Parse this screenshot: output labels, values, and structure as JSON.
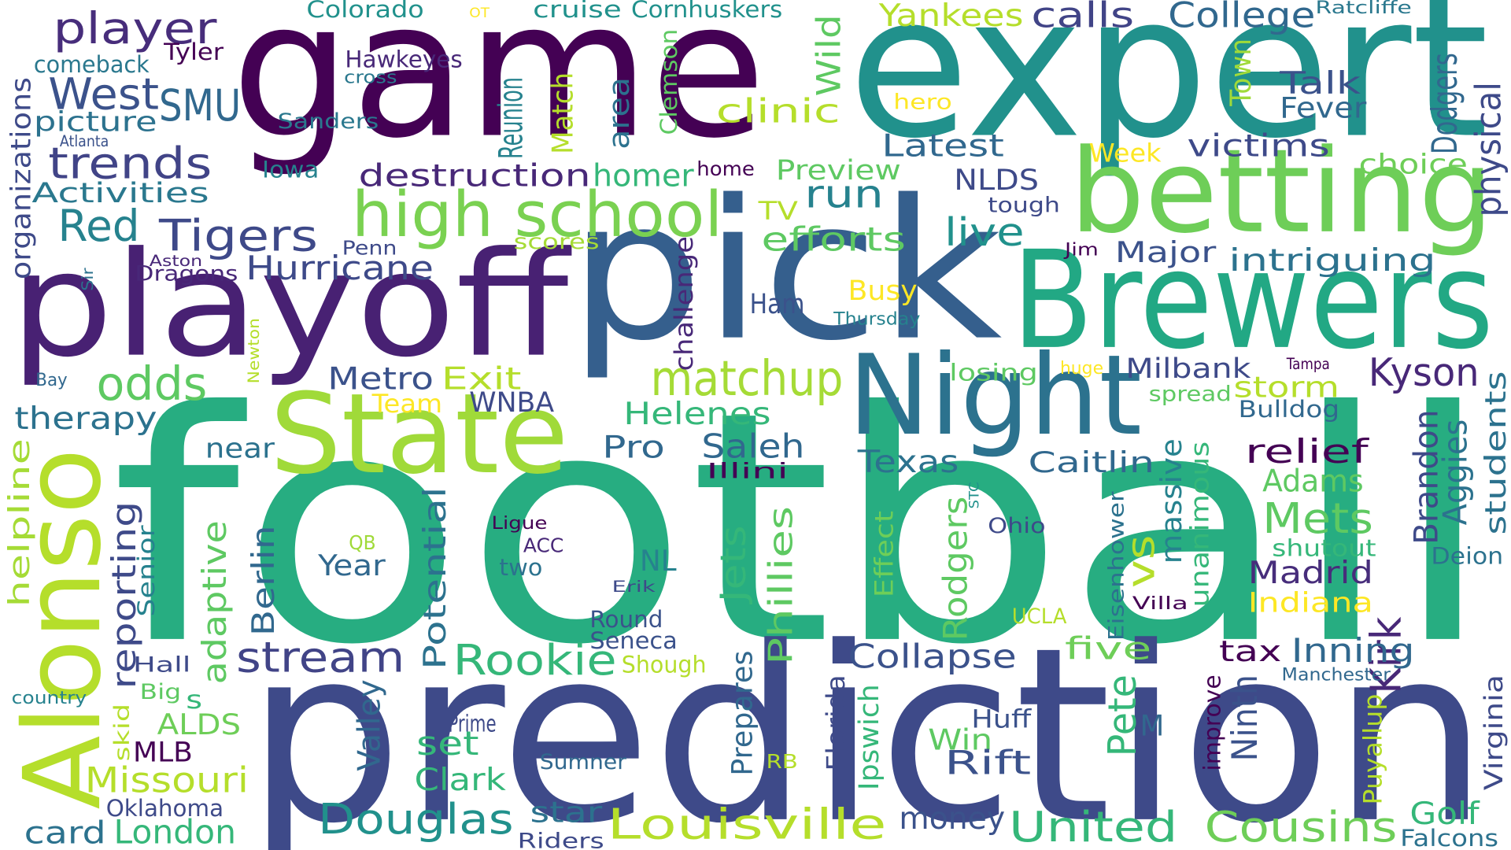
{
  "words": [
    "football",
    "prediction",
    "game",
    "expert",
    "pick",
    "playoff",
    "Brewers",
    "betting",
    "Night",
    "State",
    "Alonso",
    "high school",
    "matchup",
    "odds",
    "Red",
    "Tigers",
    "trends",
    "West",
    "SMU",
    "player",
    "comeback",
    "Tyler",
    "Colorado",
    "OT",
    "cruise",
    "Cornhuskers",
    "Ratcliffe",
    "Hawkeyes",
    "cross",
    "organizations",
    "picture",
    "Atlanta",
    "Sanders",
    "Iowa",
    "destruction",
    "Activities",
    "Reunion",
    "Match",
    "area",
    "Clemson",
    "Town",
    "Dodgers",
    "physical",
    "Yankees",
    "calls",
    "College",
    "Wild",
    "Talk",
    "Fever",
    "clinic",
    "hero",
    "Latest",
    "victims",
    "Week",
    "choice",
    "homer",
    "home",
    "Preview",
    "NLDS",
    "run",
    "tough",
    "TV",
    "efforts",
    "live",
    "scores",
    "Penn",
    "Hurricane",
    "Aston",
    "Dragons",
    "Sir",
    "challenge",
    "Major",
    "intriguing",
    "Jim",
    "Busy",
    "Ham",
    "Thursday",
    "Newton",
    "Bay",
    "Metro",
    "Exit",
    "Team",
    "losing",
    "huge",
    "Milbank",
    "Tampa",
    "Kyson",
    "spread",
    "storm",
    "therapy",
    "WNBA",
    "Helenes",
    "Bulldog",
    "helpline",
    "near",
    "Pro",
    "Saleh",
    "Texas",
    "relief",
    "Illini",
    "Caitlin",
    "Adams",
    "Brandon",
    "Aggies",
    "students",
    "Kirk",
    "massive",
    "unanimous",
    "STC",
    "Mets",
    "Eisenhower",
    "reporting",
    "adaptive",
    "Senior",
    "Berlin",
    "Potential",
    "Ligue",
    "ACC",
    "QB",
    "Ohio",
    "Effect",
    "Rodgers",
    "Jets",
    "Phillies",
    "vs",
    "Year",
    "two",
    "NL",
    "shutout",
    "Deion",
    "Madrid",
    "Erik",
    "UCLA",
    "Indiana",
    "Villa",
    "Round",
    "Seneca",
    "Pete",
    "Collapse",
    "five",
    "tax",
    "Inning",
    "stream",
    "Rookie",
    "Shough",
    "Hall",
    "Manchester",
    "Big",
    "s",
    "country",
    "Prepares",
    "Florida",
    "Ipswich",
    "Valley",
    "Ninth",
    "improve",
    "Puyallup",
    "Virginia",
    "ALDS",
    "skid",
    "MLB",
    "Prime",
    "Huff",
    "M",
    "set",
    "Win",
    "Rift",
    "Missouri",
    "RB",
    "Sumner",
    "Clark",
    "Oklahoma",
    "star",
    "Douglas",
    "Louisville",
    "money",
    "United",
    "Cousins",
    "Golf",
    "card",
    "London",
    "Riders",
    "Falcons"
  ]
}
